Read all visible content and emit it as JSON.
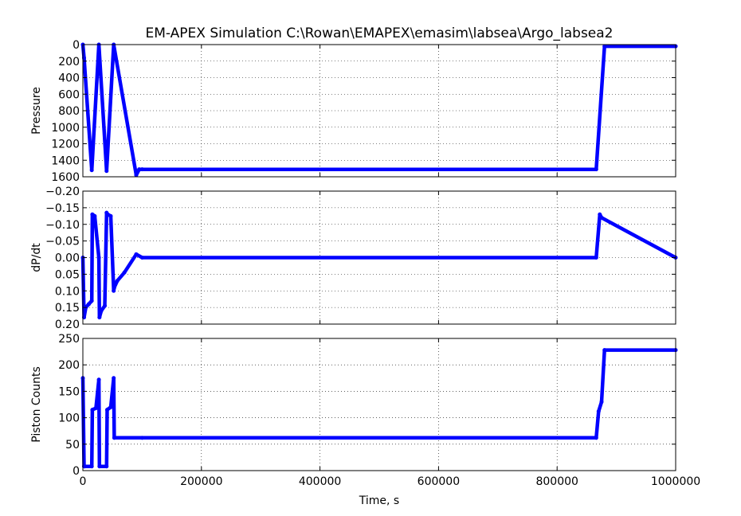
{
  "figure": {
    "title": "EM-APEX Simulation C:\\Rowan\\EMAPEX\\emasim\\labsea\\Argo_labsea2",
    "series_color": "#0000ff"
  },
  "chart_data": [
    {
      "type": "scatter",
      "ylabel": "Pressure",
      "xlim": [
        0,
        1000000
      ],
      "ylim": [
        1600,
        0
      ],
      "inverted_y": true,
      "grid": true,
      "yticks": [
        0,
        200,
        400,
        600,
        800,
        1000,
        1200,
        1400,
        1600
      ],
      "ytick_labels": [
        "0",
        "200",
        "400",
        "600",
        "800",
        "1000",
        "1200",
        "1400",
        "1600"
      ],
      "series": [
        {
          "x": [
            0,
            2000,
            15000,
            27000,
            40000,
            52000,
            90000,
            95000,
            100000,
            866000,
            880000,
            1000000
          ],
          "y": [
            0,
            160,
            1520,
            0,
            1530,
            0,
            1580,
            1510,
            1510,
            1510,
            20,
            20
          ]
        }
      ]
    },
    {
      "type": "scatter",
      "ylabel": "dP/dt",
      "xlim": [
        0,
        1000000
      ],
      "ylim": [
        0.2,
        -0.2
      ],
      "inverted_y": true,
      "grid": true,
      "yticks": [
        -0.2,
        -0.15,
        -0.1,
        -0.05,
        0,
        0.05,
        0.1,
        0.15,
        0.2
      ],
      "ytick_labels": [
        "−0.20",
        "−0.15",
        "−0.10",
        "−0.05",
        "0.00",
        "0.05",
        "0.10",
        "0.15",
        "0.20"
      ],
      "series": [
        {
          "x": [
            0,
            2000,
            5000,
            10000,
            15000,
            16000,
            20000,
            27000,
            28000,
            31000,
            37000,
            40000,
            42000,
            47000,
            52000,
            53000,
            58000,
            70000,
            90000,
            100000,
            866000,
            872000,
            875000,
            1000000
          ],
          "y": [
            0,
            0.18,
            0.15,
            0.14,
            0.13,
            -0.13,
            -0.125,
            0,
            0.18,
            0.16,
            0.145,
            -0.135,
            -0.13,
            -0.125,
            0.1,
            0.09,
            0.07,
            0.045,
            -0.01,
            0,
            0,
            -0.13,
            -0.12,
            0
          ]
        }
      ]
    },
    {
      "type": "scatter",
      "ylabel": "Piston Counts",
      "xlabel": "Time, s",
      "xlim": [
        0,
        1000000
      ],
      "ylim": [
        0,
        250
      ],
      "grid": true,
      "yticks": [
        0,
        50,
        100,
        150,
        200,
        250
      ],
      "ytick_labels": [
        "0",
        "50",
        "100",
        "150",
        "200",
        "250"
      ],
      "xticks": [
        0,
        200000,
        400000,
        600000,
        800000,
        1000000
      ],
      "xtick_labels": [
        "0",
        "200000",
        "400000",
        "600000",
        "800000",
        "1000000"
      ],
      "series": [
        {
          "x": [
            0,
            2000,
            3000,
            15000,
            16000,
            22000,
            27000,
            28000,
            40000,
            41000,
            47000,
            52000,
            53000,
            100000,
            866000,
            870000,
            875000,
            880000,
            1000000
          ],
          "y": [
            175,
            8,
            8,
            8,
            115,
            118,
            172,
            8,
            8,
            115,
            120,
            175,
            62,
            62,
            62,
            112,
            130,
            228,
            228
          ]
        }
      ]
    }
  ]
}
